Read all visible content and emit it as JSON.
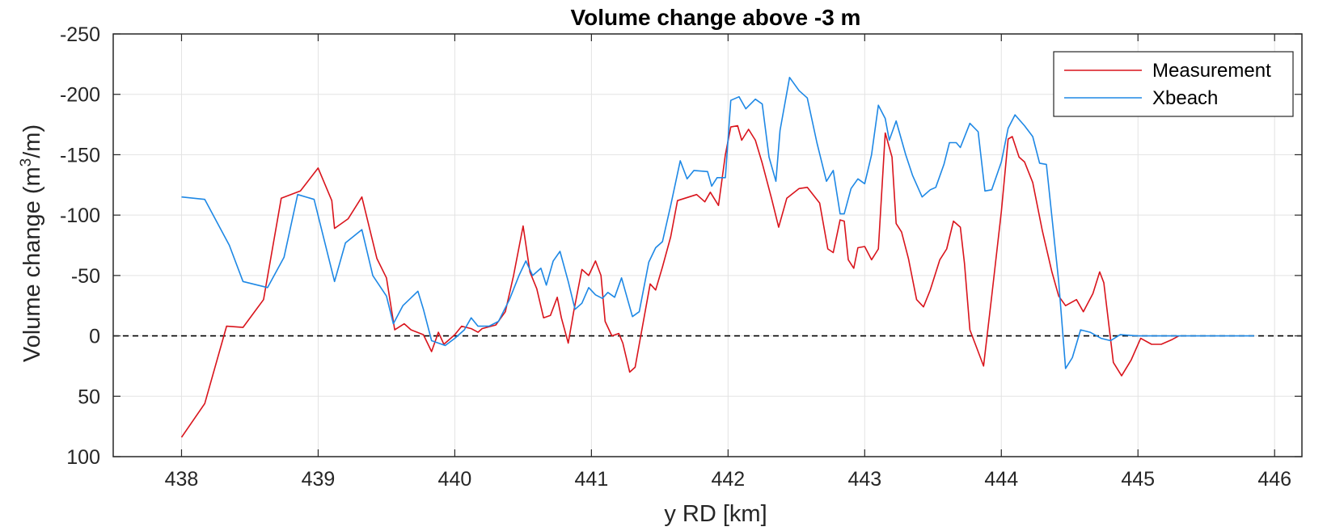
{
  "chart_data": {
    "type": "line",
    "title": "Volume change above -3 m",
    "xlabel": "y RD [km]",
    "ylabel_main": "Volume change (m",
    "ylabel_sup": "3",
    "ylabel_tail": "/m)",
    "xlim": [
      437.5,
      446.2
    ],
    "ylim": [
      -250,
      100
    ],
    "y_reversed": true,
    "xticks": [
      438,
      439,
      440,
      441,
      442,
      443,
      444,
      445,
      446
    ],
    "yticks": [
      -250,
      -200,
      -150,
      -100,
      -50,
      0,
      50,
      100
    ],
    "grid": true,
    "legend_position": "top-right",
    "reference_line": {
      "y": 0,
      "style": "dashed",
      "color": "#000000"
    },
    "series": [
      {
        "name": "Measurement",
        "color": "#d9141c",
        "points": [
          [
            438.0,
            84
          ],
          [
            438.17,
            56
          ],
          [
            438.33,
            -8
          ],
          [
            438.45,
            -7
          ],
          [
            438.6,
            -30
          ],
          [
            438.73,
            -114
          ],
          [
            438.87,
            -120
          ],
          [
            439.0,
            -139
          ],
          [
            439.1,
            -112
          ],
          [
            439.12,
            -89
          ],
          [
            439.22,
            -97
          ],
          [
            439.32,
            -115
          ],
          [
            439.43,
            -64
          ],
          [
            439.5,
            -48
          ],
          [
            439.56,
            -5
          ],
          [
            439.63,
            -10
          ],
          [
            439.68,
            -5
          ],
          [
            439.77,
            -1
          ],
          [
            439.83,
            13
          ],
          [
            439.88,
            -3
          ],
          [
            439.92,
            7
          ],
          [
            440.0,
            -1
          ],
          [
            440.05,
            -8
          ],
          [
            440.12,
            -6
          ],
          [
            440.17,
            -3
          ],
          [
            440.2,
            -6
          ],
          [
            440.3,
            -9
          ],
          [
            440.37,
            -20
          ],
          [
            440.43,
            -50
          ],
          [
            440.5,
            -91
          ],
          [
            440.55,
            -53
          ],
          [
            440.6,
            -39
          ],
          [
            440.65,
            -15
          ],
          [
            440.7,
            -17
          ],
          [
            440.75,
            -32
          ],
          [
            440.78,
            -15
          ],
          [
            440.83,
            6
          ],
          [
            440.87,
            -20
          ],
          [
            440.93,
            -55
          ],
          [
            440.98,
            -50
          ],
          [
            441.03,
            -62
          ],
          [
            441.07,
            -50
          ],
          [
            441.1,
            -12
          ],
          [
            441.15,
            0
          ],
          [
            441.2,
            -2
          ],
          [
            441.23,
            6
          ],
          [
            441.28,
            30
          ],
          [
            441.32,
            26
          ],
          [
            441.35,
            7
          ],
          [
            441.43,
            -43
          ],
          [
            441.47,
            -38
          ],
          [
            441.52,
            -57
          ],
          [
            441.58,
            -82
          ],
          [
            441.63,
            -112
          ],
          [
            441.77,
            -117
          ],
          [
            441.83,
            -111
          ],
          [
            441.87,
            -119
          ],
          [
            441.93,
            -108
          ],
          [
            441.98,
            -150
          ],
          [
            442.02,
            -173
          ],
          [
            442.07,
            -174
          ],
          [
            442.1,
            -162
          ],
          [
            442.15,
            -171
          ],
          [
            442.2,
            -162
          ],
          [
            442.25,
            -143
          ],
          [
            442.32,
            -113
          ],
          [
            442.37,
            -90
          ],
          [
            442.43,
            -114
          ],
          [
            442.52,
            -122
          ],
          [
            442.58,
            -123
          ],
          [
            442.67,
            -110
          ],
          [
            442.73,
            -72
          ],
          [
            442.77,
            -69
          ],
          [
            442.82,
            -96
          ],
          [
            442.85,
            -95
          ],
          [
            442.88,
            -63
          ],
          [
            442.92,
            -56
          ],
          [
            442.95,
            -73
          ],
          [
            443.0,
            -74
          ],
          [
            443.05,
            -63
          ],
          [
            443.1,
            -72
          ],
          [
            443.15,
            -168
          ],
          [
            443.2,
            -148
          ],
          [
            443.23,
            -93
          ],
          [
            443.27,
            -86
          ],
          [
            443.32,
            -64
          ],
          [
            443.38,
            -30
          ],
          [
            443.43,
            -24
          ],
          [
            443.48,
            -38
          ],
          [
            443.55,
            -63
          ],
          [
            443.6,
            -72
          ],
          [
            443.65,
            -95
          ],
          [
            443.7,
            -90
          ],
          [
            443.73,
            -60
          ],
          [
            443.77,
            -5
          ],
          [
            443.82,
            10
          ],
          [
            443.87,
            25
          ],
          [
            443.93,
            -33
          ],
          [
            444.0,
            -103
          ],
          [
            444.05,
            -163
          ],
          [
            444.08,
            -165
          ],
          [
            444.13,
            -148
          ],
          [
            444.17,
            -144
          ],
          [
            444.23,
            -127
          ],
          [
            444.3,
            -87
          ],
          [
            444.37,
            -53
          ],
          [
            444.42,
            -33
          ],
          [
            444.47,
            -25
          ],
          [
            444.55,
            -30
          ],
          [
            444.6,
            -20
          ],
          [
            444.67,
            -35
          ],
          [
            444.72,
            -53
          ],
          [
            444.75,
            -44
          ],
          [
            444.82,
            22
          ],
          [
            444.88,
            33
          ],
          [
            444.95,
            20
          ],
          [
            445.02,
            2
          ],
          [
            445.1,
            7
          ],
          [
            445.17,
            7
          ],
          [
            445.25,
            3
          ],
          [
            445.3,
            0
          ]
        ]
      },
      {
        "name": "Xbeach",
        "color": "#1e88e5",
        "points": [
          [
            438.0,
            -115
          ],
          [
            438.17,
            -113
          ],
          [
            438.35,
            -75
          ],
          [
            438.45,
            -45
          ],
          [
            438.63,
            -40
          ],
          [
            438.75,
            -65
          ],
          [
            438.85,
            -117
          ],
          [
            438.97,
            -113
          ],
          [
            439.12,
            -45
          ],
          [
            439.2,
            -77
          ],
          [
            439.32,
            -88
          ],
          [
            439.4,
            -50
          ],
          [
            439.5,
            -33
          ],
          [
            439.55,
            -10
          ],
          [
            439.62,
            -25
          ],
          [
            439.73,
            -37
          ],
          [
            439.77,
            -22
          ],
          [
            439.83,
            4
          ],
          [
            439.93,
            8
          ],
          [
            440.0,
            2
          ],
          [
            440.07,
            -5
          ],
          [
            440.12,
            -15
          ],
          [
            440.17,
            -8
          ],
          [
            440.25,
            -8
          ],
          [
            440.32,
            -12
          ],
          [
            440.4,
            -30
          ],
          [
            440.47,
            -50
          ],
          [
            440.52,
            -62
          ],
          [
            440.57,
            -50
          ],
          [
            440.63,
            -56
          ],
          [
            440.67,
            -42
          ],
          [
            440.72,
            -62
          ],
          [
            440.77,
            -70
          ],
          [
            440.83,
            -45
          ],
          [
            440.88,
            -22
          ],
          [
            440.93,
            -27
          ],
          [
            440.98,
            -40
          ],
          [
            441.03,
            -34
          ],
          [
            441.08,
            -31
          ],
          [
            441.12,
            -36
          ],
          [
            441.17,
            -32
          ],
          [
            441.22,
            -48
          ],
          [
            441.27,
            -28
          ],
          [
            441.3,
            -16
          ],
          [
            441.35,
            -20
          ],
          [
            441.42,
            -61
          ],
          [
            441.47,
            -73
          ],
          [
            441.52,
            -78
          ],
          [
            441.58,
            -108
          ],
          [
            441.65,
            -145
          ],
          [
            441.7,
            -130
          ],
          [
            441.75,
            -137
          ],
          [
            441.85,
            -136
          ],
          [
            441.88,
            -124
          ],
          [
            441.92,
            -131
          ],
          [
            441.98,
            -131
          ],
          [
            442.02,
            -195
          ],
          [
            442.08,
            -198
          ],
          [
            442.13,
            -188
          ],
          [
            442.2,
            -196
          ],
          [
            442.25,
            -192
          ],
          [
            442.3,
            -148
          ],
          [
            442.35,
            -128
          ],
          [
            442.38,
            -170
          ],
          [
            442.45,
            -214
          ],
          [
            442.52,
            -203
          ],
          [
            442.58,
            -197
          ],
          [
            442.65,
            -160
          ],
          [
            442.72,
            -128
          ],
          [
            442.77,
            -137
          ],
          [
            442.82,
            -101
          ],
          [
            442.85,
            -101
          ],
          [
            442.9,
            -122
          ],
          [
            442.95,
            -130
          ],
          [
            443.0,
            -126
          ],
          [
            443.05,
            -150
          ],
          [
            443.1,
            -191
          ],
          [
            443.15,
            -180
          ],
          [
            443.18,
            -162
          ],
          [
            443.23,
            -178
          ],
          [
            443.3,
            -150
          ],
          [
            443.35,
            -133
          ],
          [
            443.42,
            -115
          ],
          [
            443.48,
            -121
          ],
          [
            443.52,
            -123
          ],
          [
            443.58,
            -142
          ],
          [
            443.62,
            -160
          ],
          [
            443.67,
            -160
          ],
          [
            443.7,
            -156
          ],
          [
            443.77,
            -176
          ],
          [
            443.83,
            -169
          ],
          [
            443.88,
            -120
          ],
          [
            443.93,
            -121
          ],
          [
            444.0,
            -144
          ],
          [
            444.05,
            -172
          ],
          [
            444.1,
            -183
          ],
          [
            444.17,
            -174
          ],
          [
            444.23,
            -165
          ],
          [
            444.28,
            -143
          ],
          [
            444.33,
            -142
          ],
          [
            444.42,
            -45
          ],
          [
            444.47,
            27
          ],
          [
            444.52,
            18
          ],
          [
            444.58,
            -5
          ],
          [
            444.65,
            -3
          ],
          [
            444.73,
            2
          ],
          [
            444.8,
            4
          ],
          [
            444.87,
            -1
          ],
          [
            445.0,
            0
          ],
          [
            445.5,
            0
          ],
          [
            445.85,
            0
          ]
        ]
      }
    ]
  }
}
